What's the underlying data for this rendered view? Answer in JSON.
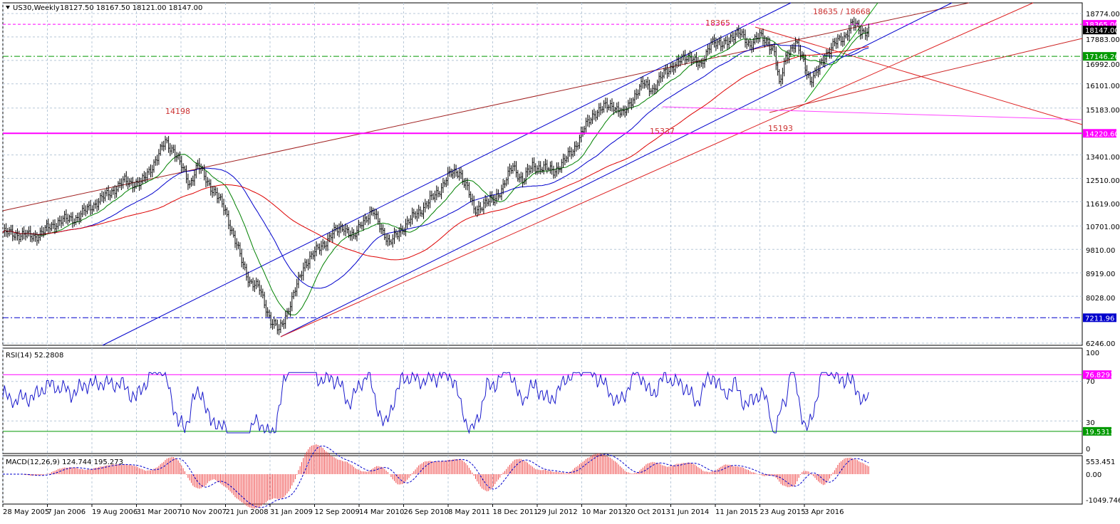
{
  "window": {
    "header_symbol": "US30,Weekly",
    "ohlc": "18127.50 18167.50 18121.00 18147.00",
    "dropdown_icon": "triangle-down-icon"
  },
  "price_panel": {
    "annotations": [
      "14198",
      "18365",
      "18635 / 18668",
      "15337",
      "15193"
    ],
    "price_tags": [
      {
        "text": "18365.00",
        "color": "#ff00ff"
      },
      {
        "text": "18147.00",
        "color": "#000000"
      },
      {
        "text": "17146.26",
        "color": "#009900"
      },
      {
        "text": "14220.60",
        "color": "#ff00ff"
      },
      {
        "text": "7211.96",
        "color": "#0000cc"
      }
    ],
    "axis_ticks": [
      "18774.00",
      "17883.00",
      "16992.00",
      "16101.00",
      "15183.00",
      "13401.00",
      "12510.00",
      "11619.00",
      "10701.00",
      "9810.00",
      "8919.00",
      "8028.00",
      "6246.00"
    ]
  },
  "rsi_panel": {
    "label": "RSI(14) 52.2808",
    "axis_ticks": [
      "100",
      "70",
      "30",
      "0"
    ],
    "level_tags": [
      {
        "text": "76.8293",
        "color": "#ff00ff"
      },
      {
        "text": "19.5313",
        "color": "#009900"
      }
    ]
  },
  "macd_panel": {
    "label": "MACD(12,26,9) 124.744 195.273",
    "axis_ticks": [
      "553.451",
      "0.00",
      "-1049.746"
    ]
  },
  "time_axis": [
    "28 May 2005",
    "7 Jan 2006",
    "19 Aug 2006",
    "31 Mar 2007",
    "10 Nov 2007",
    "21 Jun 2008",
    "31 Jan 2009",
    "12 Sep 2009",
    "14 Mar 2010",
    "26 Sep 2010",
    "8 May 2011",
    "18 Dec 2011",
    "29 Jul 2012",
    "10 Mar 2013",
    "20 Oct 2013",
    "1 Jun 2014",
    "11 Jan 2015",
    "23 Aug 2015",
    "3 Apr 2016"
  ],
  "colors": {
    "ma_fast": "#008000",
    "ma_mid": "#0000cc",
    "ma_slow": "#dd0000",
    "rsi_line": "#1a1acc",
    "macd_hist": "#ee4444",
    "macd_signal": "#0000cc",
    "grid": "#b8c8d8",
    "magenta": "#ff00ff"
  },
  "chart_data": [
    {
      "type": "line",
      "title": "US30,Weekly",
      "x_ticks": [
        "28 May 2005",
        "7 Jan 2006",
        "19 Aug 2006",
        "31 Mar 2007",
        "10 Nov 2007",
        "21 Jun 2008",
        "31 Jan 2009",
        "12 Sep 2009",
        "14 Mar 2010",
        "26 Sep 2010",
        "8 May 2011",
        "18 Dec 2011",
        "29 Jul 2012",
        "10 Mar 2013",
        "20 Oct 2013",
        "1 Jun 2014",
        "11 Jan 2015",
        "23 Aug 2015",
        "3 Apr 2016"
      ],
      "ylim": [
        6100,
        19000
      ],
      "series": [
        {
          "kind": "ohlc-close",
          "x": [
            "28 May 2005",
            "7 Jan 2006",
            "19 Aug 2006",
            "31 Mar 2007",
            "10 Nov 2007",
            "21 Jun 2008",
            "31 Jan 2009",
            "12 Sep 2009",
            "14 Mar 2010",
            "26 Sep 2010",
            "8 May 2011",
            "18 Dec 2011",
            "29 Jul 2012",
            "10 Mar 2013",
            "20 Oct 2013",
            "1 Jun 2014",
            "11 Jan 2015",
            "23 Aug 2015",
            "3 Apr 2016"
          ],
          "values": [
            10500,
            10800,
            11300,
            12300,
            13000,
            11900,
            8000,
            9600,
            10600,
            10800,
            12600,
            12100,
            12700,
            14400,
            15400,
            16700,
            17600,
            16500,
            17700
          ]
        }
      ],
      "horizontal_levels": [
        18365.0,
        17146.26,
        14220.6,
        7211.96
      ],
      "last_close": 18147.0,
      "annotations": [
        "14198",
        "18365",
        "18635 / 18668",
        "15337",
        "15193"
      ]
    },
    {
      "type": "line",
      "title": "RSI(14) 52.2808",
      "ylim": [
        0,
        100
      ],
      "levels": [
        76.8293,
        19.5313
      ],
      "last_value": 52.2808
    },
    {
      "type": "bar",
      "title": "MACD(12,26,9) 124.744 195.273",
      "ylim": [
        -1049.746,
        553.451
      ],
      "last_macd": 124.744,
      "last_signal": 195.273
    }
  ]
}
